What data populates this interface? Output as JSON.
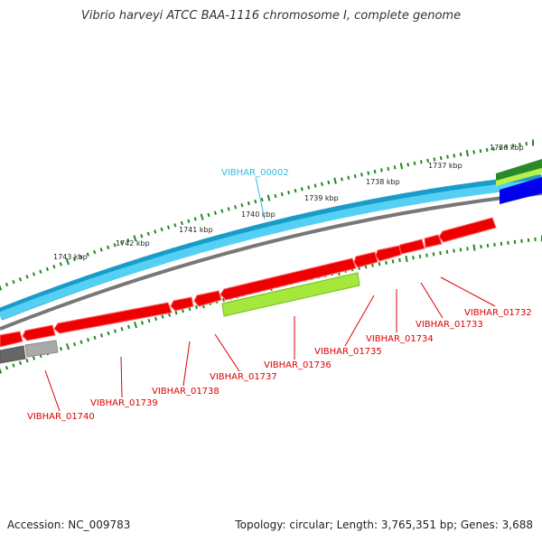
{
  "title": "Vibrio harveyi ATCC BAA-1116 chromosome I, complete genome",
  "footer": {
    "accession": "Accession: NC_009783",
    "topology": "Topology: circular; Length: 3,765,351 bp; Genes: 3,688"
  },
  "colors": {
    "forward_gene": "#ff0000",
    "rna_label": "#33bbdd",
    "light_blue_track": "#44c8f0",
    "blue_feature": "#0000ee",
    "green_feature": "#99ee33",
    "dark_green_feature": "#228822",
    "gray_track": "#888888",
    "tick_green": "#228822",
    "label_red": "#dd0000"
  },
  "ticks": [
    {
      "label": "1743 kbp"
    },
    {
      "label": "1742 kbp"
    },
    {
      "label": "1741 kbp"
    },
    {
      "label": "1740 kbp"
    },
    {
      "label": "1739 kbp"
    },
    {
      "label": "1738 kbp"
    },
    {
      "label": "1737 kbp"
    },
    {
      "label": "1736 kbp"
    }
  ],
  "top_label": {
    "text": "VIBHAR_00002"
  },
  "gene_labels": [
    {
      "text": "VIBHAR_01740"
    },
    {
      "text": "VIBHAR_01739"
    },
    {
      "text": "VIBHAR_01738"
    },
    {
      "text": "VIBHAR_01737"
    },
    {
      "text": "VIBHAR_01736"
    },
    {
      "text": "VIBHAR_01735"
    },
    {
      "text": "VIBHAR_01734"
    },
    {
      "text": "VIBHAR_01733"
    },
    {
      "text": "VIBHAR_01732"
    }
  ]
}
